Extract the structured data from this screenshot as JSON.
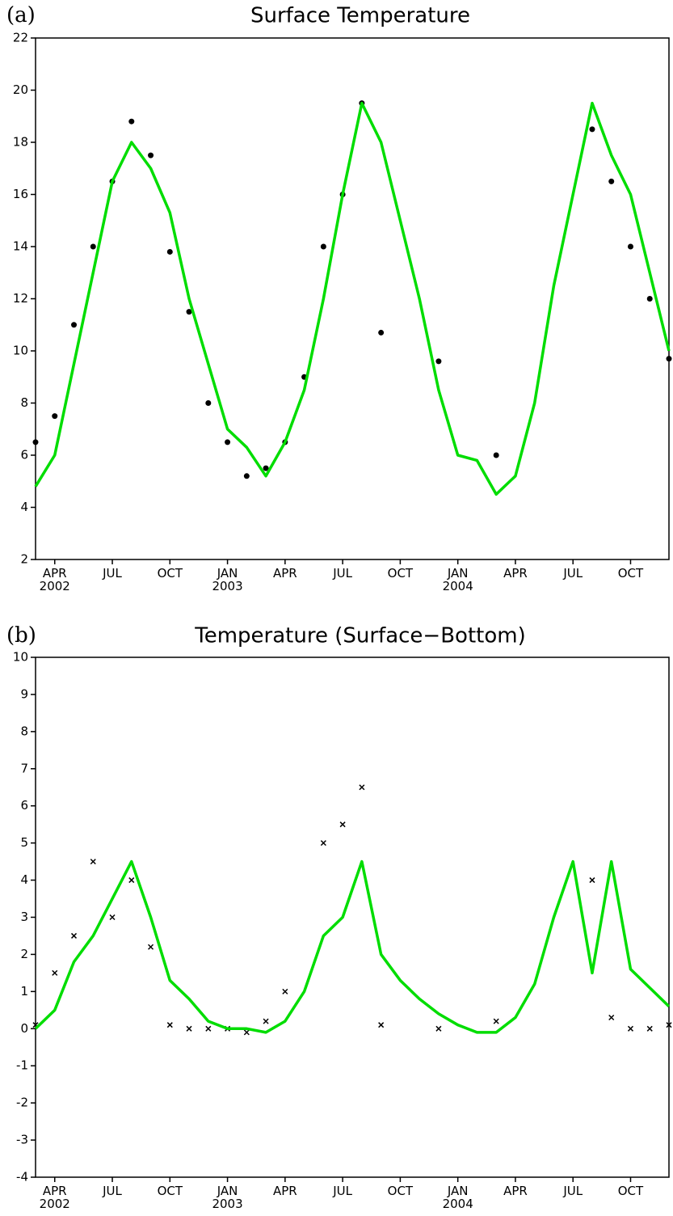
{
  "chart_data": [
    {
      "type": "line",
      "annotation": "(a)",
      "title": "Surface Temperature",
      "x": [
        "2002-03",
        "2002-04",
        "2002-05",
        "2002-06",
        "2002-07",
        "2002-08",
        "2002-09",
        "2002-10",
        "2002-11",
        "2002-12",
        "2003-01",
        "2003-02",
        "2003-03",
        "2003-04",
        "2003-05",
        "2003-06",
        "2003-07",
        "2003-08",
        "2003-09",
        "2003-10",
        "2003-11",
        "2003-12",
        "2004-01",
        "2004-02",
        "2004-03",
        "2004-04",
        "2004-05",
        "2004-06",
        "2004-07",
        "2004-08",
        "2004-09",
        "2004-10",
        "2004-11",
        "2004-12"
      ],
      "series": [
        {
          "style": "line",
          "color": "#00dd00",
          "values": [
            4.8,
            6.0,
            9.5,
            13,
            16.5,
            18,
            17,
            15.3,
            12,
            9.5,
            7.0,
            6.3,
            5.2,
            6.5,
            8.5,
            12,
            16,
            19.5,
            18,
            15,
            12,
            8.5,
            6.0,
            5.8,
            4.5,
            5.2,
            8,
            12.5,
            16,
            19.5,
            17.5,
            16,
            13,
            10
          ]
        },
        {
          "style": "dot",
          "color": "#000000",
          "values": [
            6.5,
            7.5,
            11,
            14,
            16.5,
            18.8,
            17.5,
            13.8,
            11.5,
            8,
            6.5,
            5.2,
            5.5,
            6.5,
            9,
            14,
            16,
            19.5,
            10.7,
            null,
            null,
            9.6,
            null,
            null,
            6,
            null,
            null,
            null,
            null,
            18.5,
            16.5,
            14,
            12,
            9.7
          ]
        }
      ],
      "xlim": [
        "2002-03",
        "2004-12"
      ],
      "xticks": [
        {
          "value": "2002-04",
          "label": "APR\n2002"
        },
        {
          "value": "2002-07",
          "label": "JUL"
        },
        {
          "value": "2002-10",
          "label": "OCT"
        },
        {
          "value": "2003-01",
          "label": "JAN\n2003"
        },
        {
          "value": "2003-04",
          "label": "APR"
        },
        {
          "value": "2003-07",
          "label": "JUL"
        },
        {
          "value": "2003-10",
          "label": "OCT"
        },
        {
          "value": "2004-01",
          "label": "JAN\n2004"
        },
        {
          "value": "2004-04",
          "label": "APR"
        },
        {
          "value": "2004-07",
          "label": "JUL"
        },
        {
          "value": "2004-10",
          "label": "OCT"
        }
      ],
      "ylim": [
        2,
        22
      ],
      "yticks": [
        2,
        4,
        6,
        8,
        10,
        12,
        14,
        16,
        18,
        20,
        22
      ]
    },
    {
      "type": "line",
      "annotation": "(b)",
      "title": "Temperature (Surface−Bottom)",
      "x": [
        "2002-03",
        "2002-04",
        "2002-05",
        "2002-06",
        "2002-07",
        "2002-08",
        "2002-09",
        "2002-10",
        "2002-11",
        "2002-12",
        "2003-01",
        "2003-02",
        "2003-03",
        "2003-04",
        "2003-05",
        "2003-06",
        "2003-07",
        "2003-08",
        "2003-09",
        "2003-10",
        "2003-11",
        "2003-12",
        "2004-01",
        "2004-02",
        "2004-03",
        "2004-04",
        "2004-05",
        "2004-06",
        "2004-07",
        "2004-08",
        "2004-09",
        "2004-10",
        "2004-11",
        "2004-12"
      ],
      "series": [
        {
          "style": "line",
          "color": "#00dd00",
          "values": [
            0,
            0.5,
            1.8,
            2.5,
            3.5,
            4.5,
            3,
            1.3,
            0.8,
            0.2,
            0,
            0,
            -0.1,
            0.2,
            1,
            2.5,
            3,
            4.5,
            2,
            1.3,
            0.8,
            0.4,
            0.1,
            -0.1,
            -0.1,
            0.3,
            1.2,
            3,
            4.5,
            1.5,
            4.5,
            1.6,
            1.1,
            0.6
          ]
        },
        {
          "style": "cross",
          "color": "#000000",
          "values": [
            0.1,
            1.5,
            2.5,
            4.5,
            3,
            4,
            2.2,
            0.1,
            0,
            0,
            0,
            -0.1,
            0.2,
            1,
            null,
            5,
            5.5,
            6.5,
            0.1,
            null,
            null,
            0,
            null,
            null,
            0.2,
            null,
            null,
            null,
            null,
            4,
            0.3,
            0,
            0,
            0.1
          ]
        }
      ],
      "xlim": [
        "2002-03",
        "2004-12"
      ],
      "xticks": [
        {
          "value": "2002-04",
          "label": "APR\n2002"
        },
        {
          "value": "2002-07",
          "label": "JUL"
        },
        {
          "value": "2002-10",
          "label": "OCT"
        },
        {
          "value": "2003-01",
          "label": "JAN\n2003"
        },
        {
          "value": "2003-04",
          "label": "APR"
        },
        {
          "value": "2003-07",
          "label": "JUL"
        },
        {
          "value": "2003-10",
          "label": "OCT"
        },
        {
          "value": "2004-01",
          "label": "JAN\n2004"
        },
        {
          "value": "2004-04",
          "label": "APR"
        },
        {
          "value": "2004-07",
          "label": "JUL"
        },
        {
          "value": "2004-10",
          "label": "OCT"
        }
      ],
      "ylim": [
        -4,
        10
      ],
      "yticks": [
        -4,
        -3,
        -2,
        -1,
        0,
        1,
        2,
        3,
        4,
        5,
        6,
        7,
        8,
        9,
        10
      ]
    }
  ]
}
